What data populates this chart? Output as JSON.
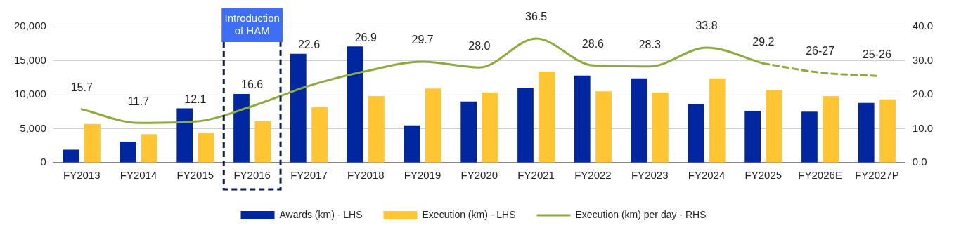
{
  "chart_data": {
    "type": "bar",
    "categories": [
      "FY2013",
      "FY2014",
      "FY2015",
      "FY2016",
      "FY2017",
      "FY2018",
      "FY2019",
      "FY2020",
      "FY2021",
      "FY2022",
      "FY2023",
      "FY2024",
      "FY2025",
      "FY2026E",
      "FY2027P"
    ],
    "series": [
      {
        "name": "Awards (km) - LHS",
        "color": "#0026a0",
        "values": [
          1900,
          3100,
          8000,
          10100,
          16000,
          17100,
          5500,
          9000,
          11000,
          12800,
          12400,
          8600,
          7600,
          7500,
          8800
        ]
      },
      {
        "name": "Execution (km) - LHS",
        "color": "#ffc533",
        "values": [
          5700,
          4200,
          4400,
          6100,
          8200,
          9800,
          10900,
          10300,
          13400,
          10500,
          10300,
          12400,
          10700,
          9800,
          9300
        ]
      },
      {
        "name": "Execution (km) per day - RHS",
        "type": "line",
        "axis": "y2",
        "color": "#8bab3a",
        "line_style": "solid",
        "values": [
          15.7,
          11.7,
          12.1,
          16.6,
          22.6,
          26.9,
          29.7,
          28.0,
          36.5,
          28.6,
          28.3,
          33.8,
          29.2,
          null,
          null
        ],
        "value_labels": [
          "15.7",
          "11.7",
          "12.1",
          "16.6",
          "22.6",
          "26.9",
          "29.7",
          "28.0",
          "36.5",
          "28.6",
          "28.3",
          "33.8",
          "29.2",
          null,
          null
        ]
      },
      {
        "type": "line",
        "axis": "y2",
        "color": "#8bab3a",
        "line_style": "dashed",
        "values": [
          null,
          null,
          null,
          null,
          null,
          null,
          null,
          null,
          null,
          null,
          null,
          null,
          29.2,
          26.5,
          25.5
        ],
        "value_labels": [
          null,
          null,
          null,
          null,
          null,
          null,
          null,
          null,
          null,
          null,
          null,
          null,
          null,
          "26-27",
          "25-26"
        ]
      }
    ],
    "ylim": [
      0,
      20000
    ],
    "yticks": [
      {
        "value": 0,
        "label": "0"
      },
      {
        "value": 5000,
        "label": "5,000"
      },
      {
        "value": 10000,
        "label": "10,000"
      },
      {
        "value": 15000,
        "label": "15,000"
      },
      {
        "value": 20000,
        "label": "20,000"
      }
    ],
    "y2lim": [
      0,
      40
    ],
    "y2ticks": [
      {
        "value": 0,
        "label": "0.0"
      },
      {
        "value": 10,
        "label": "10.0"
      },
      {
        "value": 20,
        "label": "20.0"
      },
      {
        "value": 30,
        "label": "30.0"
      },
      {
        "value": 40,
        "label": "40.0"
      }
    ],
    "bands": [
      {
        "axis": "x",
        "from": "FY2016",
        "to": "FY2016",
        "label": "Introduction of HAM",
        "color": "#3d6ef5"
      }
    ],
    "grid": "y",
    "legend": "bottom",
    "marker": "none"
  }
}
